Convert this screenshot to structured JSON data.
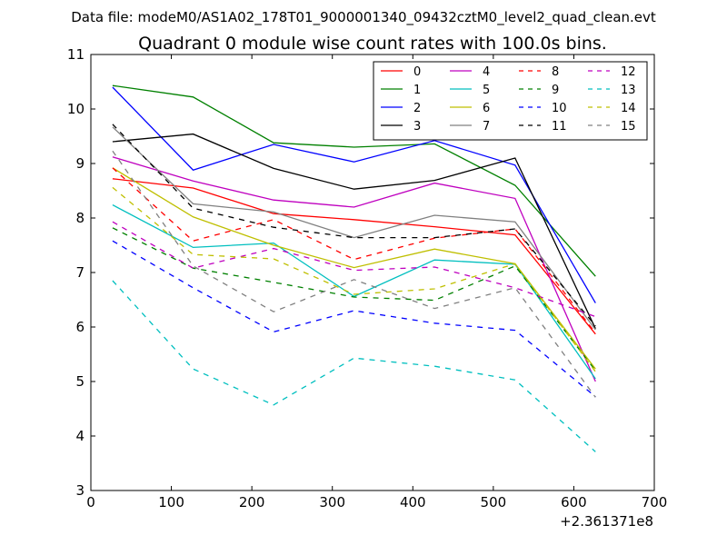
{
  "chart_data": {
    "type": "line",
    "suptitle": "Data file: modeM0/AS1A02_178T01_9000001340_09432cztM0_level2_quad_clean.evt",
    "title": "Quadrant 0 module wise count rates with 100.0s bins.",
    "xlabel": "",
    "ylabel": "",
    "x_offset_label": "+2.361371e8",
    "xlim": [
      0,
      700
    ],
    "ylim": [
      3,
      11
    ],
    "xticks": [
      0,
      100,
      200,
      300,
      400,
      500,
      600,
      700
    ],
    "yticks": [
      3,
      4,
      5,
      6,
      7,
      8,
      9,
      10,
      11
    ],
    "legend_position": "top-right",
    "legend_columns": 4,
    "x": [
      27,
      127,
      227,
      327,
      427,
      527,
      627
    ],
    "series": [
      {
        "name": "0",
        "color": "#ff0000",
        "dash": "solid",
        "values": [
          8.72,
          8.55,
          8.08,
          7.97,
          7.84,
          7.69,
          5.87
        ]
      },
      {
        "name": "1",
        "color": "#008000",
        "dash": "solid",
        "values": [
          10.43,
          10.22,
          9.38,
          9.3,
          9.36,
          8.6,
          6.93
        ]
      },
      {
        "name": "2",
        "color": "#0000ff",
        "dash": "solid",
        "values": [
          10.4,
          8.88,
          9.35,
          9.03,
          9.42,
          8.97,
          6.44
        ]
      },
      {
        "name": "3",
        "color": "#000000",
        "dash": "solid",
        "values": [
          9.4,
          9.54,
          8.91,
          8.53,
          8.69,
          9.1,
          5.97
        ]
      },
      {
        "name": "4",
        "color": "#bf00bf",
        "dash": "solid",
        "values": [
          9.12,
          8.68,
          8.33,
          8.2,
          8.64,
          8.36,
          5.0
        ]
      },
      {
        "name": "5",
        "color": "#00bfbf",
        "dash": "solid",
        "values": [
          8.24,
          7.46,
          7.54,
          6.56,
          7.23,
          7.15,
          5.05
        ]
      },
      {
        "name": "6",
        "color": "#bfbf00",
        "dash": "solid",
        "values": [
          8.92,
          8.02,
          7.5,
          7.09,
          7.43,
          7.16,
          5.23
        ]
      },
      {
        "name": "7",
        "color": "#808080",
        "dash": "solid",
        "values": [
          9.67,
          8.26,
          8.11,
          7.64,
          8.05,
          7.93,
          5.95
        ]
      },
      {
        "name": "8",
        "color": "#ff0000",
        "dash": "dashed",
        "values": [
          8.92,
          7.58,
          7.97,
          7.24,
          7.63,
          7.8,
          5.89
        ]
      },
      {
        "name": "9",
        "color": "#008000",
        "dash": "dashed",
        "values": [
          7.82,
          7.08,
          6.82,
          6.55,
          6.49,
          7.12,
          5.2
        ]
      },
      {
        "name": "10",
        "color": "#0000ff",
        "dash": "dashed",
        "values": [
          7.58,
          6.72,
          5.91,
          6.3,
          6.07,
          5.94,
          4.72
        ]
      },
      {
        "name": "11",
        "color": "#000000",
        "dash": "dashed",
        "values": [
          9.72,
          8.18,
          7.83,
          7.64,
          7.64,
          7.8,
          6.02
        ]
      },
      {
        "name": "12",
        "color": "#bf00bf",
        "dash": "dashed",
        "values": [
          7.93,
          7.08,
          7.44,
          7.04,
          7.1,
          6.72,
          6.19
        ]
      },
      {
        "name": "13",
        "color": "#00bfbf",
        "dash": "dashed",
        "values": [
          6.85,
          5.23,
          4.57,
          5.43,
          5.28,
          5.03,
          3.71
        ]
      },
      {
        "name": "14",
        "color": "#bfbf00",
        "dash": "dashed",
        "values": [
          8.56,
          7.33,
          7.25,
          6.6,
          6.7,
          7.16,
          5.18
        ]
      },
      {
        "name": "15",
        "color": "#808080",
        "dash": "dashed",
        "values": [
          9.23,
          7.12,
          6.28,
          6.87,
          6.34,
          6.72,
          4.71
        ]
      }
    ]
  }
}
